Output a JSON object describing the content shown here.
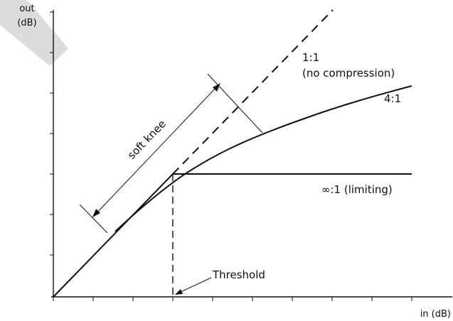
{
  "axes": {
    "y_label_line1": "out",
    "y_label_line2": "(dB)",
    "x_label": "in (dB)"
  },
  "curves": {
    "no_compression_line1": "1:1",
    "no_compression_line2": "(no compression)",
    "ratio_4_1": "4:1",
    "limiting": "∞:1 (limiting)"
  },
  "annotations": {
    "soft_knee": "soft knee",
    "threshold": "Threshold"
  },
  "colors": {
    "line": "#111111",
    "background_ribbon": "#d9d9d9"
  }
}
